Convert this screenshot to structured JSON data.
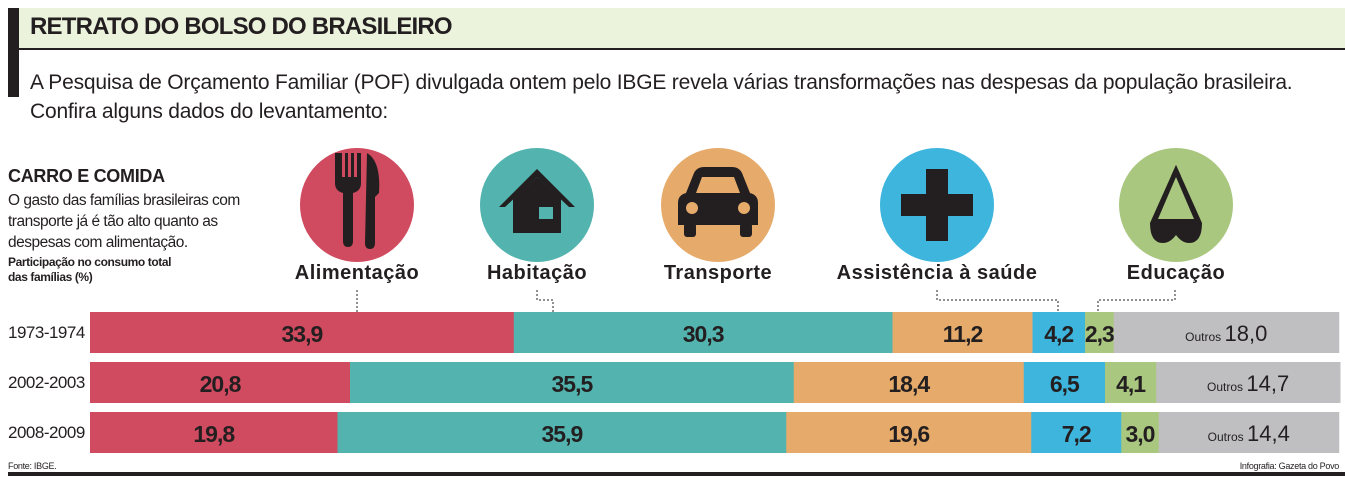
{
  "header": {
    "title": "RETRATO DO BOLSO DO BRASILEIRO",
    "intro": "A Pesquisa de Orçamento Familiar (POF) divulgada ontem pelo IBGE revela várias transformações nas despesas da população brasileira. Confira alguns dados do levantamento:"
  },
  "sidebar": {
    "heading": "CARRO E COMIDA",
    "text": "O gasto das famílias brasileiras com transporte já é tão alto quanto as despesas com alimentação.",
    "unit": "Participação no consumo total das famílias (%)"
  },
  "footer": {
    "source": "Fonte: IBGE.",
    "credit": "Infografia: Gazeta do Povo"
  },
  "chart_data": {
    "type": "bar",
    "stacked": true,
    "orientation": "horizontal",
    "categories": [
      "1973-1974",
      "2002-2003",
      "2008-2009"
    ],
    "series": [
      {
        "name": "Alimentação",
        "icon": "fork-knife-icon",
        "color": "#d04b5f",
        "values": [
          33.9,
          20.8,
          19.8
        ]
      },
      {
        "name": "Habitação",
        "icon": "house-icon",
        "color": "#53b3ae",
        "values": [
          30.3,
          35.5,
          35.9
        ]
      },
      {
        "name": "Transporte",
        "icon": "car-icon",
        "color": "#e6ab6b",
        "values": [
          11.2,
          18.4,
          19.6
        ]
      },
      {
        "name": "Assistência à saúde",
        "icon": "cross-icon",
        "color": "#3db5dd",
        "values": [
          4.2,
          6.5,
          7.2
        ]
      },
      {
        "name": "Educação",
        "icon": "pencil-icon",
        "color": "#aac780",
        "values": [
          2.3,
          4.1,
          3.0
        ]
      },
      {
        "name": "Outros",
        "color": "#bfbfc1",
        "values": [
          18.0,
          14.7,
          14.4
        ]
      }
    ],
    "value_labels": [
      [
        "33,9",
        "30,3",
        "11,2",
        "4,2",
        "2,3",
        "18,0"
      ],
      [
        "20,8",
        "35,5",
        "18,4",
        "6,5",
        "4,1",
        "14,7"
      ],
      [
        "19,8",
        "35,9",
        "19,6",
        "7,2",
        "3,0",
        "14,4"
      ]
    ],
    "xlim": [
      0,
      100
    ]
  }
}
